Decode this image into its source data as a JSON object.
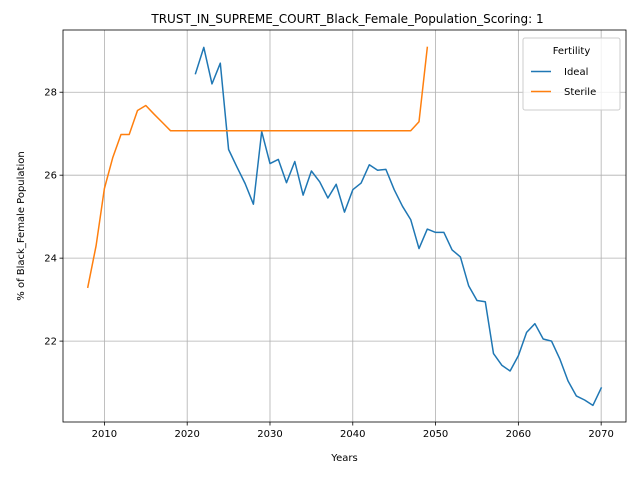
{
  "chart_data": {
    "type": "line",
    "title": "TRUST_IN_SUPREME_COURT_Black_Female_Population_Scoring: 1",
    "xlabel": "Years",
    "ylabel": "% of Black_Female Population",
    "xlim": [
      2005,
      2073
    ],
    "ylim": [
      20.05,
      29.5
    ],
    "xticks": [
      2010,
      2020,
      2030,
      2040,
      2050,
      2060,
      2070
    ],
    "yticks": [
      22,
      24,
      26,
      28
    ],
    "grid": true,
    "legend": {
      "title": "Fertility",
      "position": "top-right"
    },
    "series": [
      {
        "name": "Ideal",
        "color": "#1f77b4",
        "x": [
          2021,
          2022,
          2023,
          2024,
          2025,
          2026,
          2027,
          2028,
          2029,
          2030,
          2031,
          2032,
          2033,
          2034,
          2035,
          2036,
          2037,
          2038,
          2039,
          2040,
          2041,
          2042,
          2043,
          2044,
          2045,
          2046,
          2047,
          2048,
          2049,
          2050,
          2051,
          2052,
          2053,
          2054,
          2055,
          2056,
          2057,
          2058,
          2059,
          2060,
          2061,
          2062,
          2063,
          2064,
          2065,
          2066,
          2067,
          2068,
          2069,
          2070
        ],
        "y": [
          28.45,
          29.08,
          28.2,
          28.7,
          26.62,
          26.2,
          25.8,
          25.3,
          27.05,
          26.28,
          26.38,
          25.82,
          26.33,
          25.52,
          26.1,
          25.84,
          25.45,
          25.78,
          25.11,
          25.65,
          25.81,
          26.25,
          26.12,
          26.14,
          25.65,
          25.25,
          24.93,
          24.23,
          24.7,
          24.62,
          24.62,
          24.2,
          24.03,
          23.33,
          22.98,
          22.95,
          21.7,
          21.42,
          21.28,
          21.65,
          22.21,
          22.42,
          22.05,
          22.0,
          21.57,
          21.04,
          20.68,
          20.58,
          20.45,
          20.87
        ]
      },
      {
        "name": "Sterile",
        "color": "#ff7f0e",
        "x": [
          2008,
          2009,
          2010,
          2011,
          2012,
          2013,
          2014,
          2015,
          2016,
          2017,
          2018,
          2019,
          2020,
          2025,
          2030,
          2035,
          2040,
          2045,
          2046,
          2047,
          2048,
          2049
        ],
        "y": [
          23.3,
          24.3,
          25.68,
          26.42,
          26.98,
          26.98,
          27.56,
          27.68,
          27.47,
          27.27,
          27.07,
          27.07,
          27.07,
          27.07,
          27.07,
          27.07,
          27.07,
          27.07,
          27.07,
          27.07,
          27.29,
          29.08
        ]
      }
    ]
  }
}
